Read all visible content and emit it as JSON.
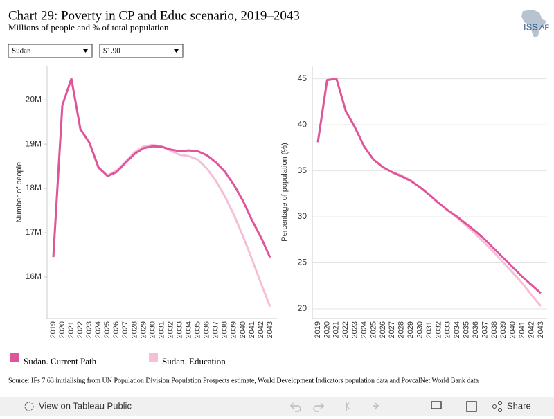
{
  "header": {
    "title": "Chart 29: Poverty in CP and Educ scenario, 2019–2043",
    "subtitle": "Millions of people and % of total population",
    "logo": "ISS",
    "logo_suffix": "AF"
  },
  "filters": [
    "Sudan",
    "$1.90"
  ],
  "chart_data": [
    {
      "type": "line",
      "y_label": "Number of people",
      "categories": [
        "2019",
        "2020",
        "2021",
        "2022",
        "2023",
        "2024",
        "2025",
        "2026",
        "2027",
        "2028",
        "2029",
        "2030",
        "2031",
        "2032",
        "2033",
        "2034",
        "2035",
        "2036",
        "2037",
        "2038",
        "2039",
        "2040",
        "2041",
        "2042",
        "2043"
      ],
      "ylim": [
        15.06,
        20.77
      ],
      "yticks": [
        {
          "value": 16,
          "label": "16M"
        },
        {
          "value": 17,
          "label": "17M"
        },
        {
          "value": 18,
          "label": "18M"
        },
        {
          "value": 19,
          "label": "19M"
        },
        {
          "value": 20,
          "label": "20M"
        }
      ],
      "grid": false,
      "series": [
        {
          "name": "Sudan. Education",
          "color": "#f5bfd8",
          "values": [
            16.45,
            19.875,
            20.48,
            19.34,
            19.03,
            18.45,
            18.3,
            18.4,
            18.6,
            18.82,
            18.95,
            18.98,
            18.95,
            18.85,
            18.76,
            18.73,
            18.65,
            18.45,
            18.17,
            17.82,
            17.4,
            16.92,
            16.4,
            15.85,
            15.33
          ]
        },
        {
          "name": "Sudan. Current Path",
          "color": "#e0559a",
          "values": [
            16.45,
            19.875,
            20.48,
            19.34,
            19.03,
            18.48,
            18.28,
            18.37,
            18.58,
            18.78,
            18.91,
            18.95,
            18.94,
            18.88,
            18.84,
            18.86,
            18.84,
            18.75,
            18.59,
            18.38,
            18.08,
            17.72,
            17.28,
            16.89,
            16.44
          ]
        }
      ]
    },
    {
      "type": "line",
      "y_label": "Percentage of population (%)",
      "categories": [
        "2019",
        "2020",
        "2021",
        "2022",
        "2023",
        "2024",
        "2025",
        "2026",
        "2027",
        "2028",
        "2029",
        "2030",
        "2031",
        "2032",
        "2033",
        "2034",
        "2035",
        "2036",
        "2037",
        "2038",
        "2039",
        "2040",
        "2041",
        "2042",
        "2043"
      ],
      "ylim": [
        18.95,
        46.4
      ],
      "yticks": [
        20,
        25,
        30,
        35,
        40,
        45
      ],
      "grid": true,
      "series": [
        {
          "name": "Sudan. Education",
          "color": "#f5bfd8",
          "values": [
            38.1,
            44.85,
            45.0,
            41.5,
            39.7,
            37.6,
            36.2,
            35.4,
            34.85,
            34.5,
            33.95,
            33.2,
            32.4,
            31.5,
            30.7,
            29.9,
            29.0,
            28.1,
            27.1,
            26.1,
            25.0,
            23.9,
            22.8,
            21.5,
            20.3
          ]
        },
        {
          "name": "Sudan. Current Path",
          "color": "#e0559a",
          "values": [
            38.1,
            44.85,
            45.0,
            41.5,
            39.7,
            37.6,
            36.2,
            35.4,
            34.85,
            34.4,
            33.9,
            33.2,
            32.4,
            31.5,
            30.7,
            30.0,
            29.2,
            28.4,
            27.5,
            26.5,
            25.5,
            24.5,
            23.5,
            22.6,
            21.7
          ]
        }
      ]
    }
  ],
  "source": "Source: IFs 7.63 initialising from UN Population Division Population Prospects estimate, World Development Indicators population data and PovcalNet World Bank data",
  "toolbar": {
    "view": "View on Tableau Public",
    "share": "Share"
  }
}
